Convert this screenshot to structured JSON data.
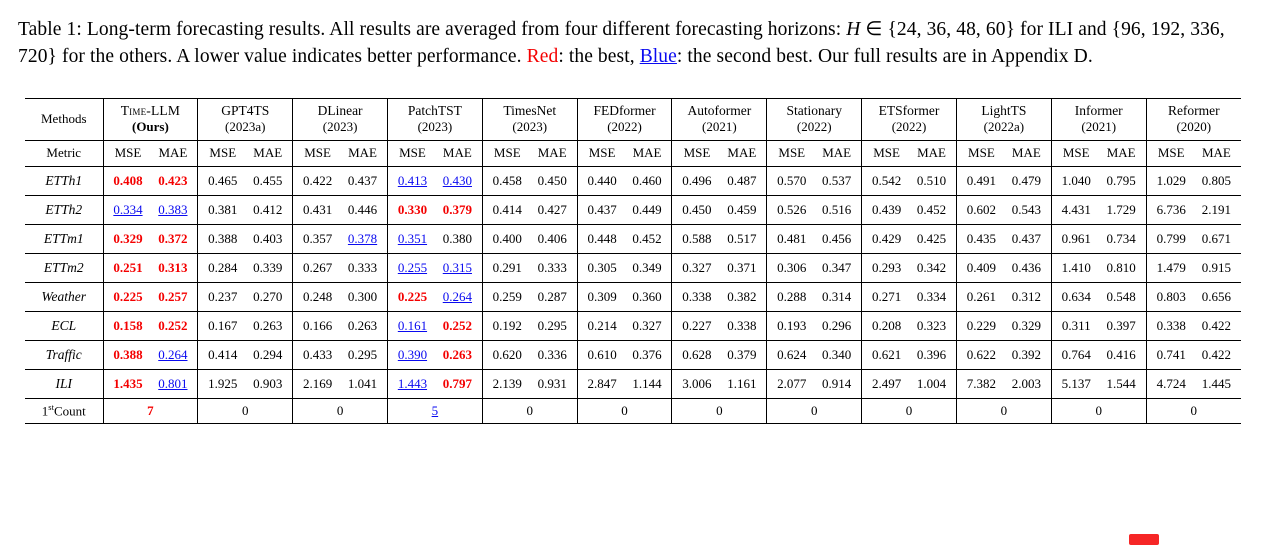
{
  "page": {
    "background": "#ffffff"
  },
  "colors": {
    "best": "#f40000",
    "second": "#0a0af0",
    "text": "#000000"
  },
  "caption": {
    "segments": [
      {
        "text": "Table 1: Long-term forecasting results. All results are averaged from four different forecasting horizons: ",
        "style": "plain"
      },
      {
        "text": "H",
        "style": "math-var"
      },
      {
        "text": " ∈ {24, 36, 48, 60} for ILI and {96, 192, 336, 720} for the others. A lower value indicates better performance. ",
        "style": "plain"
      },
      {
        "text": "Red",
        "style": "red"
      },
      {
        "text": ": the best, ",
        "style": "plain"
      },
      {
        "text": "Blue",
        "style": "blue"
      },
      {
        "text": ": the second best. Our full results are in Appendix D.",
        "style": "plain"
      }
    ]
  },
  "table": {
    "methods_label": "Methods",
    "metric_label": "Metric",
    "metric_labels": [
      "MSE",
      "MAE"
    ],
    "columns": [
      {
        "name": "Time-LLM",
        "sub": "(Ours)",
        "smallcaps": true,
        "bold_sub": true
      },
      {
        "name": "GPT4TS",
        "sub": "(2023a)"
      },
      {
        "name": "DLinear",
        "sub": "(2023)"
      },
      {
        "name": "PatchTST",
        "sub": "(2023)"
      },
      {
        "name": "TimesNet",
        "sub": "(2023)"
      },
      {
        "name": "FEDformer",
        "sub": "(2022)"
      },
      {
        "name": "Autoformer",
        "sub": "(2021)"
      },
      {
        "name": "Stationary",
        "sub": "(2022)"
      },
      {
        "name": "ETSformer",
        "sub": "(2022)"
      },
      {
        "name": "LightTS",
        "sub": "(2022a)"
      },
      {
        "name": "Informer",
        "sub": "(2021)"
      },
      {
        "name": "Reformer",
        "sub": "(2020)"
      }
    ],
    "rows": [
      {
        "label": "ETTh1",
        "cells": [
          [
            "0.408",
            "r"
          ],
          [
            "0.423",
            "r"
          ],
          [
            "0.465",
            ""
          ],
          [
            "0.455",
            ""
          ],
          [
            "0.422",
            ""
          ],
          [
            "0.437",
            ""
          ],
          [
            "0.413",
            "b"
          ],
          [
            "0.430",
            "b"
          ],
          [
            "0.458",
            ""
          ],
          [
            "0.450",
            ""
          ],
          [
            "0.440",
            ""
          ],
          [
            "0.460",
            ""
          ],
          [
            "0.496",
            ""
          ],
          [
            "0.487",
            ""
          ],
          [
            "0.570",
            ""
          ],
          [
            "0.537",
            ""
          ],
          [
            "0.542",
            ""
          ],
          [
            "0.510",
            ""
          ],
          [
            "0.491",
            ""
          ],
          [
            "0.479",
            ""
          ],
          [
            "1.040",
            ""
          ],
          [
            "0.795",
            ""
          ],
          [
            "1.029",
            ""
          ],
          [
            "0.805",
            ""
          ]
        ]
      },
      {
        "label": "ETTh2",
        "cells": [
          [
            "0.334",
            "b"
          ],
          [
            "0.383",
            "b"
          ],
          [
            "0.381",
            ""
          ],
          [
            "0.412",
            ""
          ],
          [
            "0.431",
            ""
          ],
          [
            "0.446",
            ""
          ],
          [
            "0.330",
            "r"
          ],
          [
            "0.379",
            "r"
          ],
          [
            "0.414",
            ""
          ],
          [
            "0.427",
            ""
          ],
          [
            "0.437",
            ""
          ],
          [
            "0.449",
            ""
          ],
          [
            "0.450",
            ""
          ],
          [
            "0.459",
            ""
          ],
          [
            "0.526",
            ""
          ],
          [
            "0.516",
            ""
          ],
          [
            "0.439",
            ""
          ],
          [
            "0.452",
            ""
          ],
          [
            "0.602",
            ""
          ],
          [
            "0.543",
            ""
          ],
          [
            "4.431",
            ""
          ],
          [
            "1.729",
            ""
          ],
          [
            "6.736",
            ""
          ],
          [
            "2.191",
            ""
          ]
        ]
      },
      {
        "label": "ETTm1",
        "cells": [
          [
            "0.329",
            "r"
          ],
          [
            "0.372",
            "r"
          ],
          [
            "0.388",
            ""
          ],
          [
            "0.403",
            ""
          ],
          [
            "0.357",
            ""
          ],
          [
            "0.378",
            "b"
          ],
          [
            "0.351",
            "b"
          ],
          [
            "0.380",
            ""
          ],
          [
            "0.400",
            ""
          ],
          [
            "0.406",
            ""
          ],
          [
            "0.448",
            ""
          ],
          [
            "0.452",
            ""
          ],
          [
            "0.588",
            ""
          ],
          [
            "0.517",
            ""
          ],
          [
            "0.481",
            ""
          ],
          [
            "0.456",
            ""
          ],
          [
            "0.429",
            ""
          ],
          [
            "0.425",
            ""
          ],
          [
            "0.435",
            ""
          ],
          [
            "0.437",
            ""
          ],
          [
            "0.961",
            ""
          ],
          [
            "0.734",
            ""
          ],
          [
            "0.799",
            ""
          ],
          [
            "0.671",
            ""
          ]
        ]
      },
      {
        "label": "ETTm2",
        "cells": [
          [
            "0.251",
            "r"
          ],
          [
            "0.313",
            "r"
          ],
          [
            "0.284",
            ""
          ],
          [
            "0.339",
            ""
          ],
          [
            "0.267",
            ""
          ],
          [
            "0.333",
            ""
          ],
          [
            "0.255",
            "b"
          ],
          [
            "0.315",
            "b"
          ],
          [
            "0.291",
            ""
          ],
          [
            "0.333",
            ""
          ],
          [
            "0.305",
            ""
          ],
          [
            "0.349",
            ""
          ],
          [
            "0.327",
            ""
          ],
          [
            "0.371",
            ""
          ],
          [
            "0.306",
            ""
          ],
          [
            "0.347",
            ""
          ],
          [
            "0.293",
            ""
          ],
          [
            "0.342",
            ""
          ],
          [
            "0.409",
            ""
          ],
          [
            "0.436",
            ""
          ],
          [
            "1.410",
            ""
          ],
          [
            "0.810",
            ""
          ],
          [
            "1.479",
            ""
          ],
          [
            "0.915",
            ""
          ]
        ]
      },
      {
        "label": "Weather",
        "cells": [
          [
            "0.225",
            "r"
          ],
          [
            "0.257",
            "r"
          ],
          [
            "0.237",
            ""
          ],
          [
            "0.270",
            ""
          ],
          [
            "0.248",
            ""
          ],
          [
            "0.300",
            ""
          ],
          [
            "0.225",
            "r"
          ],
          [
            "0.264",
            "b"
          ],
          [
            "0.259",
            ""
          ],
          [
            "0.287",
            ""
          ],
          [
            "0.309",
            ""
          ],
          [
            "0.360",
            ""
          ],
          [
            "0.338",
            ""
          ],
          [
            "0.382",
            ""
          ],
          [
            "0.288",
            ""
          ],
          [
            "0.314",
            ""
          ],
          [
            "0.271",
            ""
          ],
          [
            "0.334",
            ""
          ],
          [
            "0.261",
            ""
          ],
          [
            "0.312",
            ""
          ],
          [
            "0.634",
            ""
          ],
          [
            "0.548",
            ""
          ],
          [
            "0.803",
            ""
          ],
          [
            "0.656",
            ""
          ]
        ]
      },
      {
        "label": "ECL",
        "cells": [
          [
            "0.158",
            "r"
          ],
          [
            "0.252",
            "r"
          ],
          [
            "0.167",
            ""
          ],
          [
            "0.263",
            ""
          ],
          [
            "0.166",
            ""
          ],
          [
            "0.263",
            ""
          ],
          [
            "0.161",
            "b"
          ],
          [
            "0.252",
            "r"
          ],
          [
            "0.192",
            ""
          ],
          [
            "0.295",
            ""
          ],
          [
            "0.214",
            ""
          ],
          [
            "0.327",
            ""
          ],
          [
            "0.227",
            ""
          ],
          [
            "0.338",
            ""
          ],
          [
            "0.193",
            ""
          ],
          [
            "0.296",
            ""
          ],
          [
            "0.208",
            ""
          ],
          [
            "0.323",
            ""
          ],
          [
            "0.229",
            ""
          ],
          [
            "0.329",
            ""
          ],
          [
            "0.311",
            ""
          ],
          [
            "0.397",
            ""
          ],
          [
            "0.338",
            ""
          ],
          [
            "0.422",
            ""
          ]
        ]
      },
      {
        "label": "Traffic",
        "cells": [
          [
            "0.388",
            "r"
          ],
          [
            "0.264",
            "b"
          ],
          [
            "0.414",
            ""
          ],
          [
            "0.294",
            ""
          ],
          [
            "0.433",
            ""
          ],
          [
            "0.295",
            ""
          ],
          [
            "0.390",
            "b"
          ],
          [
            "0.263",
            "r"
          ],
          [
            "0.620",
            ""
          ],
          [
            "0.336",
            ""
          ],
          [
            "0.610",
            ""
          ],
          [
            "0.376",
            ""
          ],
          [
            "0.628",
            ""
          ],
          [
            "0.379",
            ""
          ],
          [
            "0.624",
            ""
          ],
          [
            "0.340",
            ""
          ],
          [
            "0.621",
            ""
          ],
          [
            "0.396",
            ""
          ],
          [
            "0.622",
            ""
          ],
          [
            "0.392",
            ""
          ],
          [
            "0.764",
            ""
          ],
          [
            "0.416",
            ""
          ],
          [
            "0.741",
            ""
          ],
          [
            "0.422",
            ""
          ]
        ]
      },
      {
        "label": "ILI",
        "cells": [
          [
            "1.435",
            "r"
          ],
          [
            "0.801",
            "b"
          ],
          [
            "1.925",
            ""
          ],
          [
            "0.903",
            ""
          ],
          [
            "2.169",
            ""
          ],
          [
            "1.041",
            ""
          ],
          [
            "1.443",
            "b"
          ],
          [
            "0.797",
            "r"
          ],
          [
            "2.139",
            ""
          ],
          [
            "0.931",
            ""
          ],
          [
            "2.847",
            ""
          ],
          [
            "1.144",
            ""
          ],
          [
            "3.006",
            ""
          ],
          [
            "1.161",
            ""
          ],
          [
            "2.077",
            ""
          ],
          [
            "0.914",
            ""
          ],
          [
            "2.497",
            ""
          ],
          [
            "1.004",
            ""
          ],
          [
            "7.382",
            ""
          ],
          [
            "2.003",
            ""
          ],
          [
            "5.137",
            ""
          ],
          [
            "1.544",
            ""
          ],
          [
            "4.724",
            ""
          ],
          [
            "1.445",
            ""
          ]
        ]
      }
    ],
    "count": {
      "prefix": "1",
      "sup": "st",
      "suffix": "Count",
      "values": [
        [
          "7",
          "r"
        ],
        [
          "0",
          ""
        ],
        [
          "0",
          ""
        ],
        [
          "5",
          "b"
        ],
        [
          "0",
          ""
        ],
        [
          "0",
          ""
        ],
        [
          "0",
          ""
        ],
        [
          "0",
          ""
        ],
        [
          "0",
          ""
        ],
        [
          "0",
          ""
        ],
        [
          "0",
          ""
        ],
        [
          "0",
          ""
        ]
      ]
    }
  }
}
